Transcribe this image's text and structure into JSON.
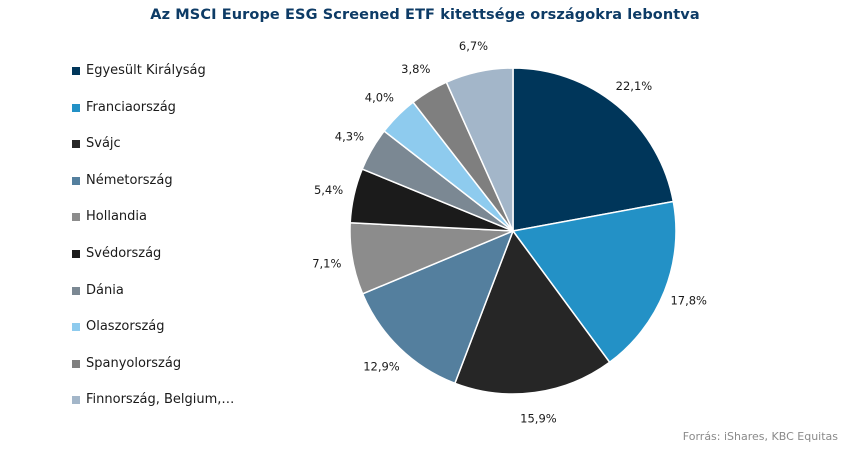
{
  "chart_data": {
    "type": "pie",
    "title": "Az MSCI Europe ESG Screened ETF kitettsége országokra lebontva",
    "legend_position": "left",
    "slices": [
      {
        "name": "Egyesült Királyság",
        "value": 22.1,
        "label": "22,1%",
        "color": "#00365a"
      },
      {
        "name": "Franciaország",
        "value": 17.8,
        "label": "17,8%",
        "color": "#2391c6"
      },
      {
        "name": "Svájc",
        "value": 15.9,
        "label": "15,9%",
        "color": "#262626"
      },
      {
        "name": "Németország",
        "value": 12.9,
        "label": "12,9%",
        "color": "#547f9e"
      },
      {
        "name": "Hollandia",
        "value": 7.1,
        "label": "7,1%",
        "color": "#8c8c8c"
      },
      {
        "name": "Svédország",
        "value": 5.4,
        "label": "5,4%",
        "color": "#1b1b1b"
      },
      {
        "name": "Dánia",
        "value": 4.3,
        "label": "4,3%",
        "color": "#7b8893"
      },
      {
        "name": "Olaszország",
        "value": 4.0,
        "label": "4,0%",
        "color": "#8ecbee"
      },
      {
        "name": "Spanyolország",
        "value": 3.8,
        "label": "3,8%",
        "color": "#7f7f7f"
      },
      {
        "name": "Finnország, Belgium,…",
        "value": 6.7,
        "label": "6,7%",
        "color": "#a3b6c9"
      }
    ]
  },
  "source": "Forrás: iShares, KBC Equitas"
}
